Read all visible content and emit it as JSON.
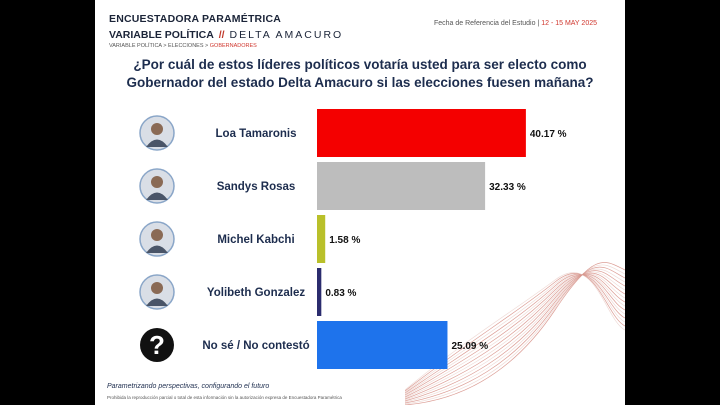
{
  "header": {
    "brand": "ENCUESTADORA PARAMÉTRICA",
    "variable_label": "VARIABLE POLÍTICA",
    "separator": "//",
    "region": "DELTA AMACURO",
    "breadcrumb_prefix": "VARIABLE POLÍTICA > ELECCIONES > ",
    "breadcrumb_active": "GOBERNADORES",
    "reference_label": "Fecha de Referencia del Estudio | ",
    "reference_dates": "12 - 15 MAY 2025"
  },
  "question": {
    "line1": "¿Por cuál de estos líderes políticos votaría usted para ser electo como",
    "line2": "Gobernador del estado Delta Amacuro si las elecciones fuesen mañana?"
  },
  "chart_data": {
    "type": "bar",
    "orientation": "horizontal",
    "categories": [
      "Loa Tamaronis",
      "Sandys Rosas",
      "Michel Kabchi",
      "Yolibeth Gonzalez",
      "No sé / No contestó"
    ],
    "values": [
      40.17,
      32.33,
      1.58,
      0.83,
      25.09
    ],
    "value_labels": [
      "40.17 %",
      "32.33 %",
      "1.58 %",
      "0.83 %",
      "25.09 %"
    ],
    "colors": [
      "#f40000",
      "#bdbdbd",
      "#b9c02a",
      "#2b2c6e",
      "#1e73ec"
    ],
    "icons": [
      "candidate-photo",
      "candidate-photo",
      "candidate-photo",
      "candidate-photo",
      "question-mark-icon"
    ]
  },
  "footer": {
    "slogan": "Parametrizando perspectivas, configurando el futuro",
    "note": "Prohibida la reproducción parcial o total de esta información sin la autorización expresa de Encuestadora Paramétrica"
  }
}
